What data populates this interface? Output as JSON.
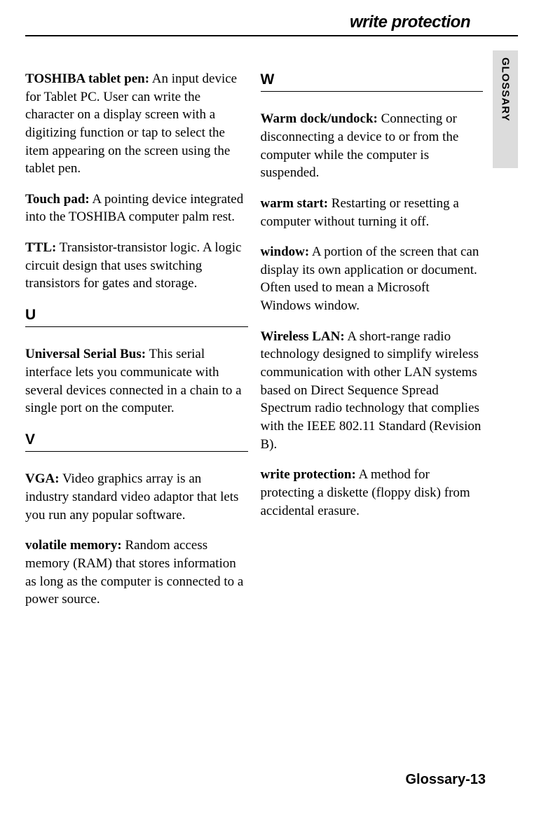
{
  "header": {
    "running_title": "write protection"
  },
  "side_tab": "GLOSSARY",
  "left_column": {
    "entries_top": [
      {
        "term": "TOSHIBA tablet pen:",
        "def": " An input device for Tablet PC. User can write the character on a display screen with a digitizing function or tap to select the item appearing on the screen using the tablet pen."
      },
      {
        "term": "Touch pad:",
        "def": " A pointing device integrated into the TOSHIBA computer palm rest."
      },
      {
        "term": "TTL:",
        "def": "  Transistor-transistor logic.  A logic circuit design that uses switching transistors for gates and storage."
      }
    ],
    "section_u": "U",
    "entries_u": [
      {
        "term": "Universal Serial Bus:",
        "def": " This serial interface lets you communicate with several devices connected in a chain to a single port on the computer."
      }
    ],
    "section_v": "V",
    "entries_v": [
      {
        "term": "VGA:",
        "def": " Video graphics array is an industry standard video adaptor that lets you run any popular software."
      },
      {
        "term": "volatile memory:",
        "def": "  Random access memory (RAM) that stores information as long as the computer is connected to a power source."
      }
    ]
  },
  "right_column": {
    "section_w": "W",
    "entries_w": [
      {
        "term": "Warm dock/undock:",
        "def": " Connecting or disconnecting a device to or from the computer while the computer is suspended."
      },
      {
        "term": "warm start:",
        "def": "  Restarting or resetting a computer without turning it off."
      },
      {
        "term": "window:",
        "def": "  A portion of the screen that can display its own application or document.  Often used to mean a Microsoft Windows window."
      },
      {
        "term": "Wireless LAN:",
        "def": " A short-range radio technology designed to simplify wireless communication with other LAN systems based on Direct Sequence Spread Spectrum radio technology that complies with the IEEE 802.11 Standard (Revision B)."
      },
      {
        "term": "write protection:",
        "def": "  A method for protecting a diskette (floppy disk) from accidental erasure."
      }
    ]
  },
  "footer": "Glossary-13"
}
